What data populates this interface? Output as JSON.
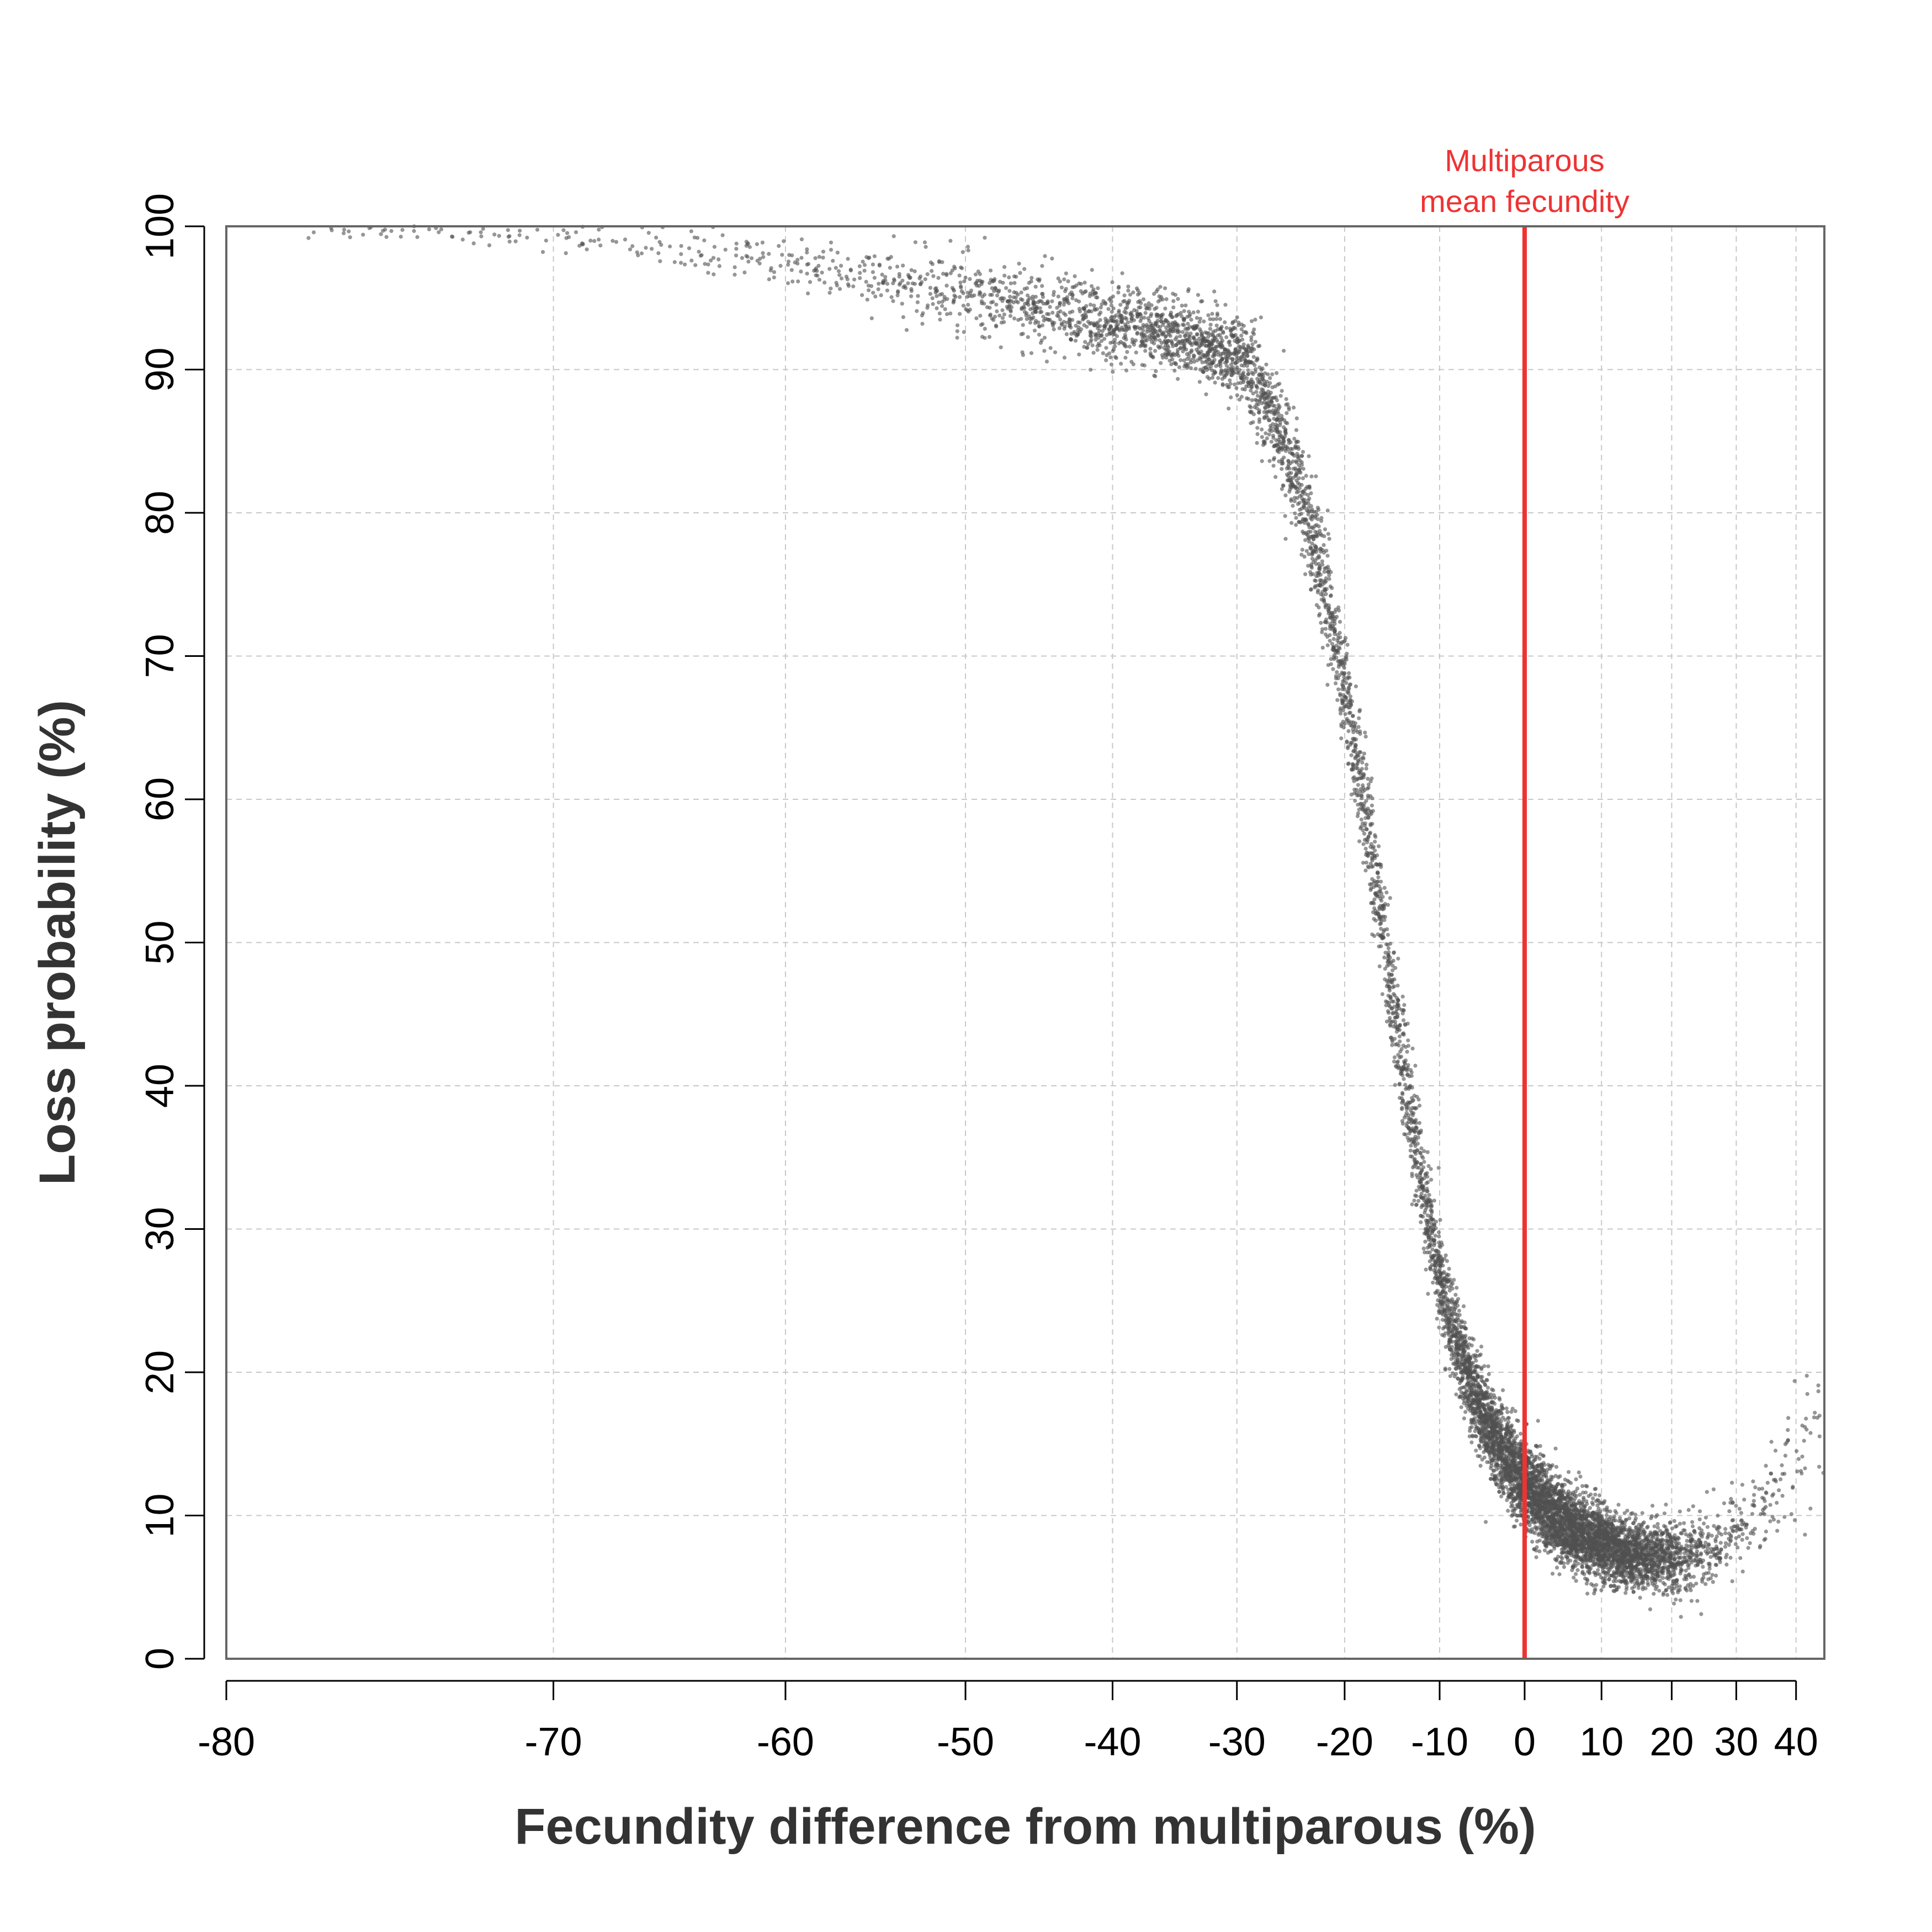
{
  "chart_data": {
    "type": "scatter",
    "xlabel": "Fecundity difference from multiparous (%)",
    "ylabel": "Loss probability (%)",
    "xlim": [
      -80,
      45
    ],
    "ylim": [
      0,
      100
    ],
    "x_scale": "log(1 + x/100)",
    "x_ticks": [
      -80,
      -70,
      -60,
      -50,
      -40,
      -30,
      -20,
      -10,
      0,
      10,
      20,
      30,
      40
    ],
    "y_ticks": [
      0,
      10,
      20,
      30,
      40,
      50,
      60,
      70,
      80,
      90,
      100
    ],
    "grid": true,
    "point_color": "#505050",
    "annotation": {
      "x": 0,
      "lines": [
        "Multiparous",
        "mean fecundity"
      ],
      "color": "#ee3333"
    },
    "curve": {
      "description": "Dense cloud of simulated points following a declining sigmoid",
      "x": [
        -78,
        -75,
        -72,
        -70,
        -67,
        -64,
        -62,
        -60,
        -57,
        -54,
        -52,
        -50,
        -47,
        -44,
        -42,
        -40,
        -38,
        -36,
        -34,
        -32,
        -30,
        -29,
        -28,
        -27,
        -26,
        -25,
        -24,
        -23,
        -22,
        -21,
        -20,
        -19,
        -18,
        -17,
        -16,
        -15,
        -14,
        -13,
        -12,
        -11,
        -10,
        -9,
        -8,
        -7,
        -6,
        -5,
        -4,
        -3,
        -2,
        -1,
        0,
        2,
        4,
        6,
        8,
        10,
        12,
        14,
        16,
        18,
        20,
        22,
        24,
        26,
        28,
        30,
        32,
        35,
        38,
        41,
        43,
        45
      ],
      "y": [
        99.8,
        99.7,
        99.5,
        99.2,
        98.8,
        98.3,
        97.9,
        97.4,
        96.8,
        96.1,
        95.6,
        95.1,
        94.5,
        93.9,
        93.5,
        93.2,
        92.9,
        92.6,
        92.2,
        91.6,
        90.8,
        90.0,
        88.5,
        87.0,
        85.2,
        83.0,
        80.6,
        78.0,
        75.0,
        71.5,
        67.8,
        63.8,
        59.5,
        55.0,
        50.2,
        45.8,
        41.5,
        37.2,
        33.3,
        29.8,
        26.6,
        24.0,
        21.8,
        20.0,
        18.5,
        17.1,
        15.9,
        14.8,
        13.8,
        12.9,
        12.2,
        11.0,
        10.0,
        9.2,
        8.5,
        8.0,
        7.6,
        7.3,
        7.1,
        7.0,
        7.0,
        7.2,
        7.5,
        7.9,
        8.4,
        9.0,
        9.6,
        10.8,
        12.5,
        14.5,
        16.0,
        17.5
      ],
      "spread": [
        0.3,
        0.4,
        0.5,
        0.6,
        0.7,
        0.8,
        0.9,
        1.0,
        1.1,
        1.2,
        1.3,
        1.3,
        1.3,
        1.3,
        1.3,
        1.3,
        1.3,
        1.3,
        1.3,
        1.3,
        1.4,
        1.5,
        1.6,
        1.7,
        1.8,
        1.9,
        2.0,
        2.0,
        2.0,
        2.0,
        2.0,
        2.0,
        2.0,
        2.0,
        2.0,
        2.0,
        2.0,
        2.0,
        1.9,
        1.8,
        1.7,
        1.7,
        1.6,
        1.6,
        1.5,
        1.5,
        1.5,
        1.5,
        1.5,
        1.5,
        1.5,
        1.4,
        1.4,
        1.3,
        1.3,
        1.3,
        1.2,
        1.2,
        1.2,
        1.2,
        1.2,
        1.3,
        1.3,
        1.4,
        1.4,
        1.5,
        1.6,
        1.8,
        2.0,
        2.3,
        2.5,
        2.6
      ],
      "density": [
        2,
        2,
        2,
        2,
        3,
        3,
        4,
        5,
        6,
        7,
        9,
        11,
        13,
        15,
        18,
        20,
        22,
        24,
        26,
        26,
        27,
        27,
        27,
        27,
        27,
        27,
        28,
        28,
        28,
        28,
        28,
        28,
        28,
        28,
        28,
        28,
        29,
        29,
        30,
        33,
        36,
        40,
        44,
        48,
        52,
        56,
        60,
        62,
        64,
        66,
        66,
        66,
        66,
        64,
        60,
        56,
        50,
        44,
        38,
        30,
        22,
        16,
        12,
        8,
        6,
        5,
        4,
        3,
        2,
        2,
        2,
        1
      ]
    }
  }
}
